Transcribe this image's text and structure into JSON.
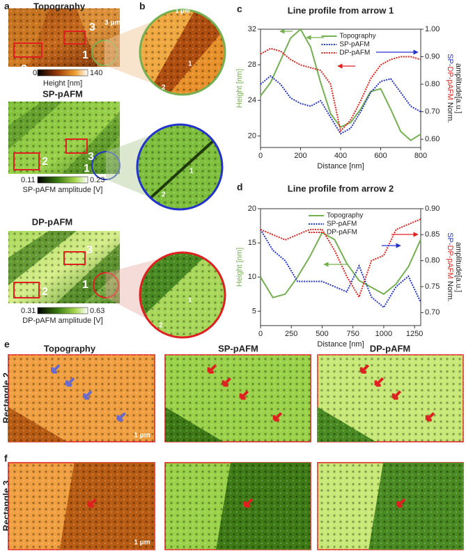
{
  "figure": {
    "panel_letters": [
      "a",
      "b",
      "c",
      "d",
      "e",
      "f"
    ],
    "topo": {
      "title": "Topography",
      "scale": "3 μm",
      "cb_min": 0,
      "cb_max": 140,
      "cb_label": "Height [nm]"
    },
    "sp": {
      "title": "SP-pAFM",
      "cb_min": 0.11,
      "cb_max": 0.23,
      "cb_label": "SP-pAFM amplitude [V]"
    },
    "dp": {
      "title": "DP-pAFM",
      "cb_min": 0.31,
      "cb_max": 0.63,
      "cb_label": "DP-pAFM amplitude [V]"
    },
    "zoom_scale": "1 μm",
    "markers": [
      "1",
      "2",
      "3"
    ],
    "columns": [
      "Topography",
      "SP-pAFM",
      "DP-pAFM"
    ],
    "rows": [
      "Rectangle 2",
      "Rectangle 3"
    ],
    "row_scale": "1 μm"
  },
  "chart_data": [
    {
      "type": "line",
      "title": "Line profile from arrow 1",
      "xlabel": "Distance [nm]",
      "ylabel": "Height [nm]",
      "y2label": [
        "SP-",
        "DP-pAFM",
        " Norm.",
        "amplitude[a.u.]"
      ],
      "x": [
        0,
        50,
        100,
        150,
        200,
        250,
        300,
        350,
        400,
        450,
        500,
        550,
        600,
        650,
        700,
        750,
        800
      ],
      "xlim": [
        0,
        800
      ],
      "xticks": [
        0,
        200,
        400,
        600,
        800
      ],
      "ylim": [
        18.7,
        32
      ],
      "yticks": [
        20,
        24,
        28,
        32
      ],
      "y2lim": [
        0.57,
        1.0
      ],
      "y2ticks": [
        {
          "value": 0.6,
          "label": "0.60"
        },
        {
          "value": 0.7,
          "label": "0.70"
        },
        {
          "value": 0.8,
          "label": "0.80"
        },
        {
          "value": 0.9,
          "label": "0.90"
        },
        {
          "value": 1.0,
          "label": "1.00"
        }
      ],
      "legend": "upper right",
      "series": [
        {
          "name": "Topography",
          "color": "#74b04f",
          "style": "solid",
          "values": [
            24.5,
            26,
            28.5,
            31,
            32,
            30,
            26,
            22.5,
            21,
            21.5,
            23,
            25,
            25.3,
            23,
            20.5,
            19.5,
            20.2
          ]
        },
        {
          "name": "SP-pAFM",
          "color": "#2233cc",
          "style": "dotted",
          "axis": "y2",
          "values": [
            0.8,
            0.83,
            0.8,
            0.75,
            0.73,
            0.72,
            0.74,
            0.68,
            0.62,
            0.64,
            0.7,
            0.77,
            0.81,
            0.82,
            0.77,
            0.72,
            0.7
          ]
        },
        {
          "name": "DP-pAFM",
          "color": "#e0201b",
          "style": "dotted",
          "axis": "y2",
          "values": [
            0.91,
            0.93,
            0.92,
            0.89,
            0.87,
            0.86,
            0.85,
            0.8,
            0.63,
            0.67,
            0.74,
            0.82,
            0.87,
            0.89,
            0.9,
            0.9,
            0.89
          ]
        }
      ]
    },
    {
      "type": "line",
      "title": "Line profile from arrow 2",
      "xlabel": "Distance [nm]",
      "ylabel": "Height [nm]",
      "y2label": [
        "SP-",
        "DP-pAFM",
        " Norm.",
        "amplitude[a.u.]"
      ],
      "x": [
        0,
        100,
        200,
        300,
        400,
        500,
        600,
        700,
        800,
        900,
        1000,
        1100,
        1200,
        1300
      ],
      "xlim": [
        0,
        1300
      ],
      "xticks": [
        0,
        250,
        500,
        750,
        1000,
        1250
      ],
      "ylim": [
        2.9,
        20
      ],
      "yticks": [
        5,
        10,
        15,
        20
      ],
      "y2lim": [
        0.675,
        0.9
      ],
      "y2ticks": [
        {
          "value": 0.7,
          "label": "0.70"
        },
        0.75,
        {
          "value": 0.8,
          "label": "0.80"
        },
        0.85,
        {
          "value": 0.9,
          "label": "0.90"
        }
      ],
      "legend": "upper center",
      "series": [
        {
          "name": "Topography",
          "color": "#74b04f",
          "style": "solid",
          "values": [
            10,
            7,
            7.5,
            10,
            13,
            16.5,
            15.5,
            12,
            9.5,
            8.5,
            7.5,
            9,
            11.5,
            15.5
          ]
        },
        {
          "name": "SP-pAFM",
          "color": "#2233cc",
          "style": "dotted",
          "axis": "y2",
          "values": [
            0.86,
            0.82,
            0.8,
            0.76,
            0.76,
            0.76,
            0.75,
            0.74,
            0.79,
            0.73,
            0.71,
            0.75,
            0.77,
            0.72
          ]
        },
        {
          "name": "DP-pAFM",
          "color": "#e0201b",
          "style": "dotted",
          "axis": "y2",
          "values": [
            0.86,
            0.85,
            0.84,
            0.85,
            0.86,
            0.86,
            0.82,
            0.77,
            0.73,
            0.8,
            0.81,
            0.86,
            0.87,
            0.88
          ]
        }
      ]
    }
  ]
}
